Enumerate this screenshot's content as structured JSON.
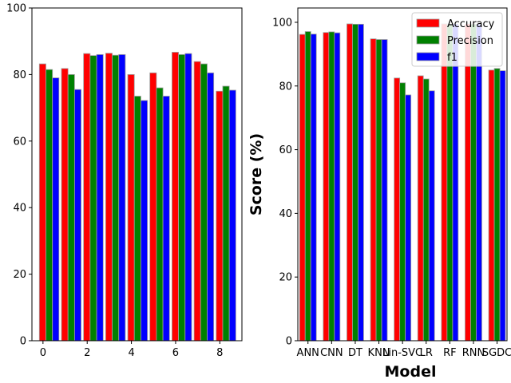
{
  "chart_data": [
    {
      "type": "bar",
      "x": [
        0,
        1,
        2,
        3,
        4,
        5,
        6,
        7,
        8
      ],
      "series": [
        {
          "color": "#ff0000",
          "values": [
            83.2,
            81.8,
            86.3,
            86.4,
            80.0,
            80.5,
            86.7,
            83.9,
            75.0
          ]
        },
        {
          "color": "#008000",
          "values": [
            81.5,
            80.0,
            85.7,
            85.8,
            73.5,
            76.0,
            86.0,
            83.2,
            76.5
          ]
        },
        {
          "color": "#0000ff",
          "values": [
            79.0,
            75.5,
            86.0,
            86.0,
            72.2,
            73.5,
            86.3,
            80.5,
            75.3
          ]
        }
      ],
      "xlim": [
        -0.5,
        9.0
      ],
      "ylim": [
        0,
        100
      ],
      "xticks": [
        0,
        2,
        4,
        6,
        8
      ],
      "yticks": [
        0,
        20,
        40,
        60,
        80,
        100
      ],
      "xlabel": "",
      "ylabel": "",
      "legend": false
    },
    {
      "type": "bar",
      "categories": [
        "ANN",
        "CNN",
        "DT",
        "KNN",
        "Lin-SVC",
        "LR",
        "RF",
        "RNN",
        "SGDC"
      ],
      "series": [
        {
          "name": "Accuracy",
          "color": "#ff0000",
          "values": [
            96.2,
            96.8,
            99.5,
            94.8,
            82.5,
            83.2,
            99.5,
            99.5,
            85.0
          ]
        },
        {
          "name": "Precision",
          "color": "#008000",
          "values": [
            97.1,
            97.0,
            99.4,
            94.6,
            81.0,
            82.2,
            99.3,
            99.4,
            85.5
          ]
        },
        {
          "name": "f1",
          "color": "#0000ff",
          "values": [
            96.3,
            96.7,
            99.4,
            94.6,
            77.2,
            78.5,
            99.5,
            99.4,
            84.8
          ]
        }
      ],
      "ylim": [
        0,
        104.5
      ],
      "yticks": [
        0,
        20,
        40,
        60,
        80,
        100
      ],
      "xlabel": "Model",
      "ylabel": "Score (%)",
      "legend": "top-right"
    }
  ]
}
